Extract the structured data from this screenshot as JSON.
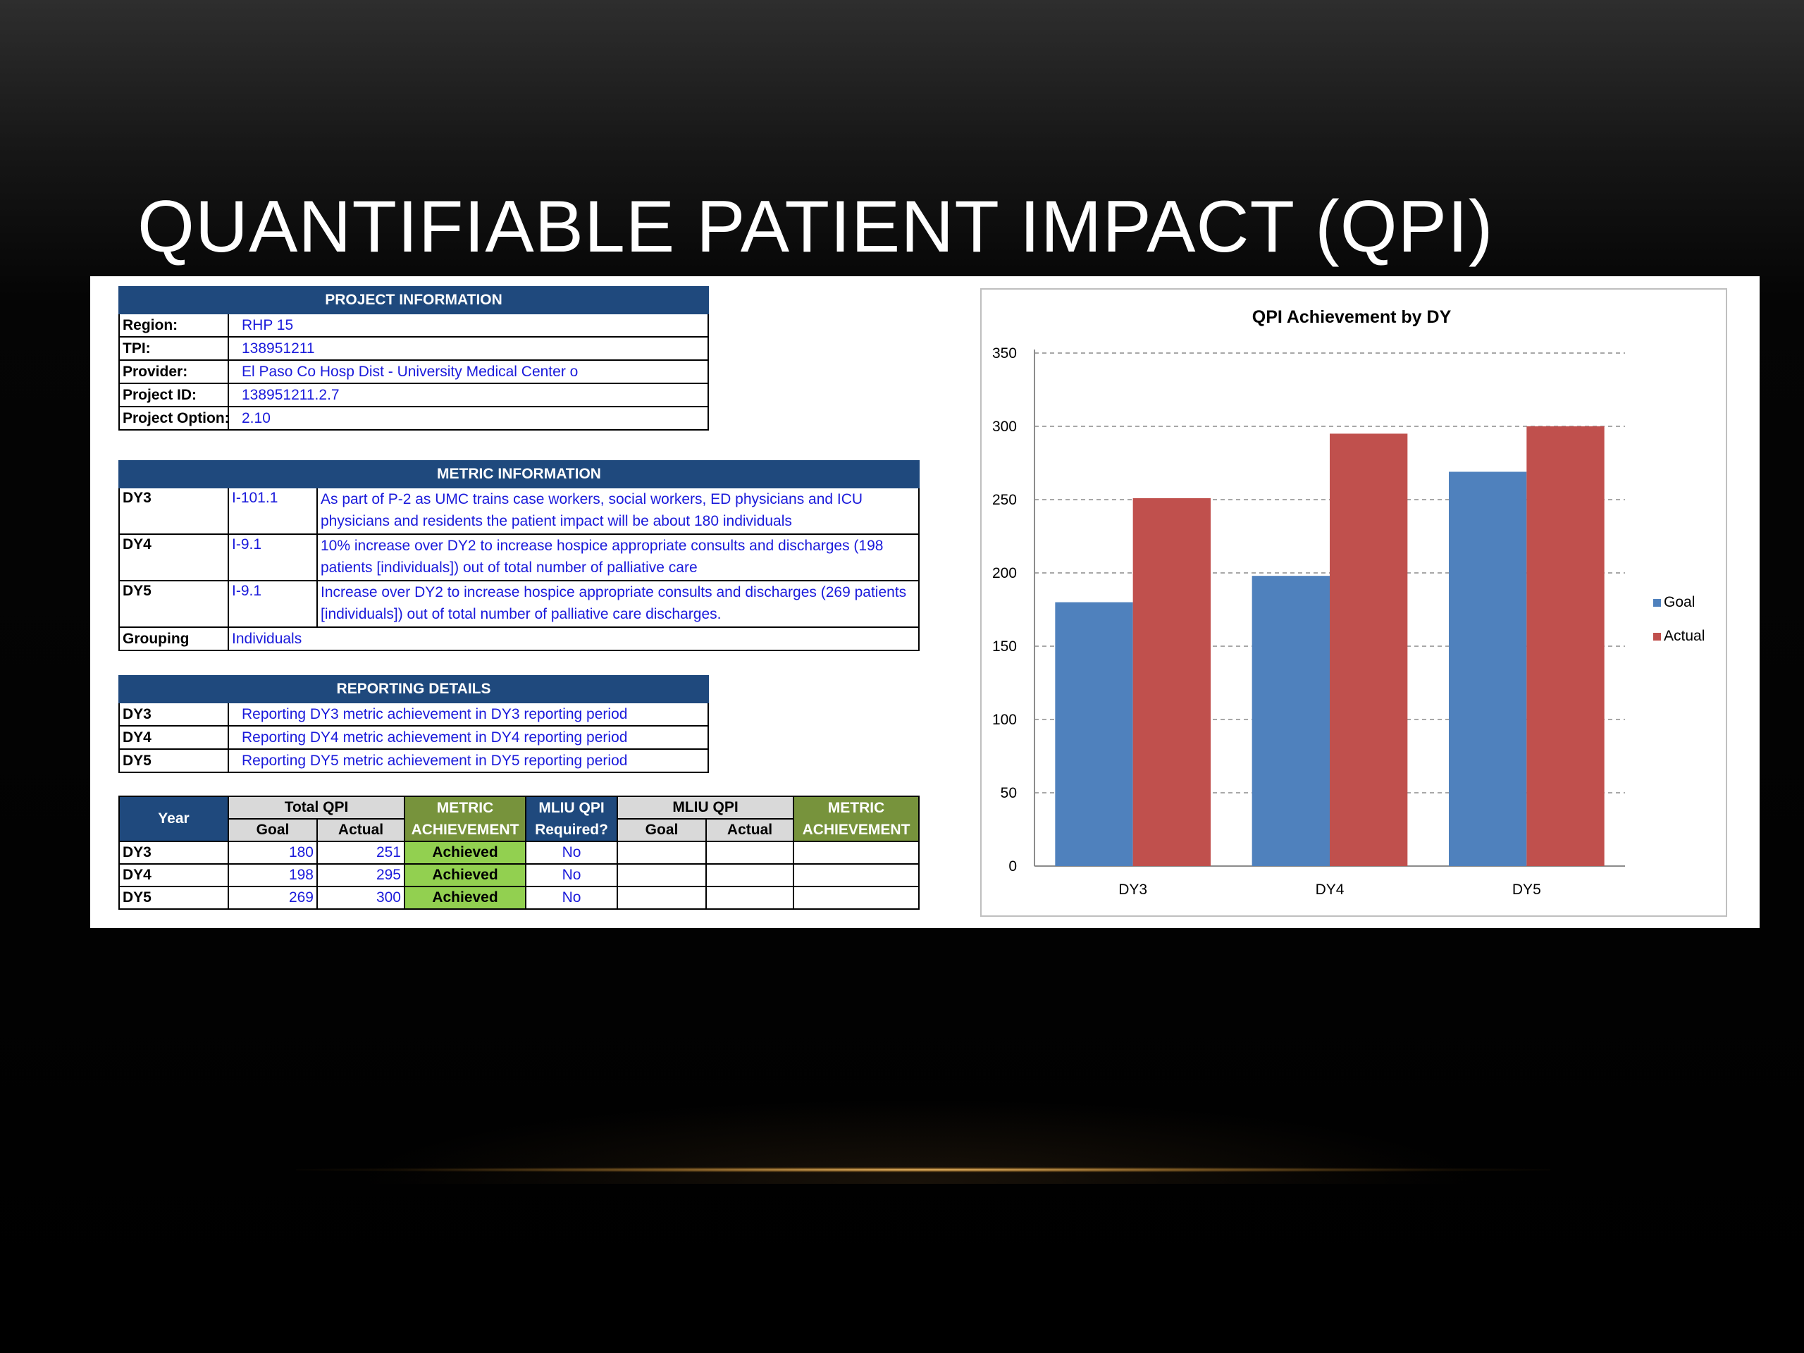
{
  "slide": {
    "title": "QUANTIFIABLE PATIENT IMPACT (QPI)"
  },
  "project_info": {
    "header": "PROJECT INFORMATION",
    "rows": [
      {
        "label": "Region:",
        "value": "RHP 15"
      },
      {
        "label": "TPI:",
        "value": "138951211"
      },
      {
        "label": "Provider:",
        "value": "El Paso Co Hosp Dist - University Medical Center o"
      },
      {
        "label": "Project ID:",
        "value": "138951211.2.7"
      },
      {
        "label": "Project Option:",
        "value": "2.10"
      }
    ]
  },
  "metric_info": {
    "header": "METRIC INFORMATION",
    "rows": [
      {
        "year": "DY3",
        "id": "I-101.1",
        "desc": "As part of P-2 as UMC trains case workers, social workers, ED physicians and ICU physicians and residents the patient impact will be about 180 individuals"
      },
      {
        "year": "DY4",
        "id": "I-9.1",
        "desc": "10% increase over DY2 to increase hospice appropriate consults and discharges (198 patients [individuals]) out of total number of palliative care"
      },
      {
        "year": "DY5",
        "id": "I-9.1",
        "desc": "Increase over DY2 to increase hospice appropriate consults and discharges (269 patients [individuals]) out of total number of palliative care discharges."
      }
    ],
    "grouping_label": "Grouping",
    "grouping_value": "Individuals"
  },
  "reporting_details": {
    "header": "REPORTING DETAILS",
    "rows": [
      {
        "year": "DY3",
        "text": "Reporting DY3 metric achievement in DY3 reporting period"
      },
      {
        "year": "DY4",
        "text": "Reporting DY4 metric achievement in DY4 reporting period"
      },
      {
        "year": "DY5",
        "text": "Reporting DY5 metric achievement in DY5 reporting period"
      }
    ]
  },
  "qpi_table": {
    "headers": {
      "year": "Year",
      "total_qpi": "Total QPI",
      "goal": "Goal",
      "actual": "Actual",
      "metric_achievement_1": "METRIC",
      "metric_achievement_2": "ACHIEVEMENT",
      "mliu_required_1": "MLIU QPI",
      "mliu_required_2": "Required?",
      "mliu_qpi": "MLIU QPI",
      "mliu_goal": "Goal",
      "mliu_actual": "Actual",
      "metric_achievement2_1": "METRIC",
      "metric_achievement2_2": "ACHIEVEMENT"
    },
    "rows": [
      {
        "year": "DY3",
        "goal": "180",
        "actual": "251",
        "achievement": "Achieved",
        "mliu_required": "No",
        "mliu_goal": "",
        "mliu_actual": "",
        "mliu_achievement": ""
      },
      {
        "year": "DY4",
        "goal": "198",
        "actual": "295",
        "achievement": "Achieved",
        "mliu_required": "No",
        "mliu_goal": "",
        "mliu_actual": "",
        "mliu_achievement": ""
      },
      {
        "year": "DY5",
        "goal": "269",
        "actual": "300",
        "achievement": "Achieved",
        "mliu_required": "No",
        "mliu_goal": "",
        "mliu_actual": "",
        "mliu_achievement": ""
      }
    ]
  },
  "chart_data": {
    "type": "bar",
    "title": "QPI Achievement by DY",
    "categories": [
      "DY3",
      "DY4",
      "DY5"
    ],
    "series": [
      {
        "name": "Goal",
        "values": [
          180,
          198,
          269
        ],
        "color": "#4f81bd"
      },
      {
        "name": "Actual",
        "values": [
          251,
          295,
          300
        ],
        "color": "#c0504d"
      }
    ],
    "ylim": [
      0,
      350
    ],
    "yticks": [
      0,
      50,
      100,
      150,
      200,
      250,
      300,
      350
    ],
    "grid": "dashed-horizontal",
    "legend": "right",
    "xlabel": "",
    "ylabel": ""
  }
}
